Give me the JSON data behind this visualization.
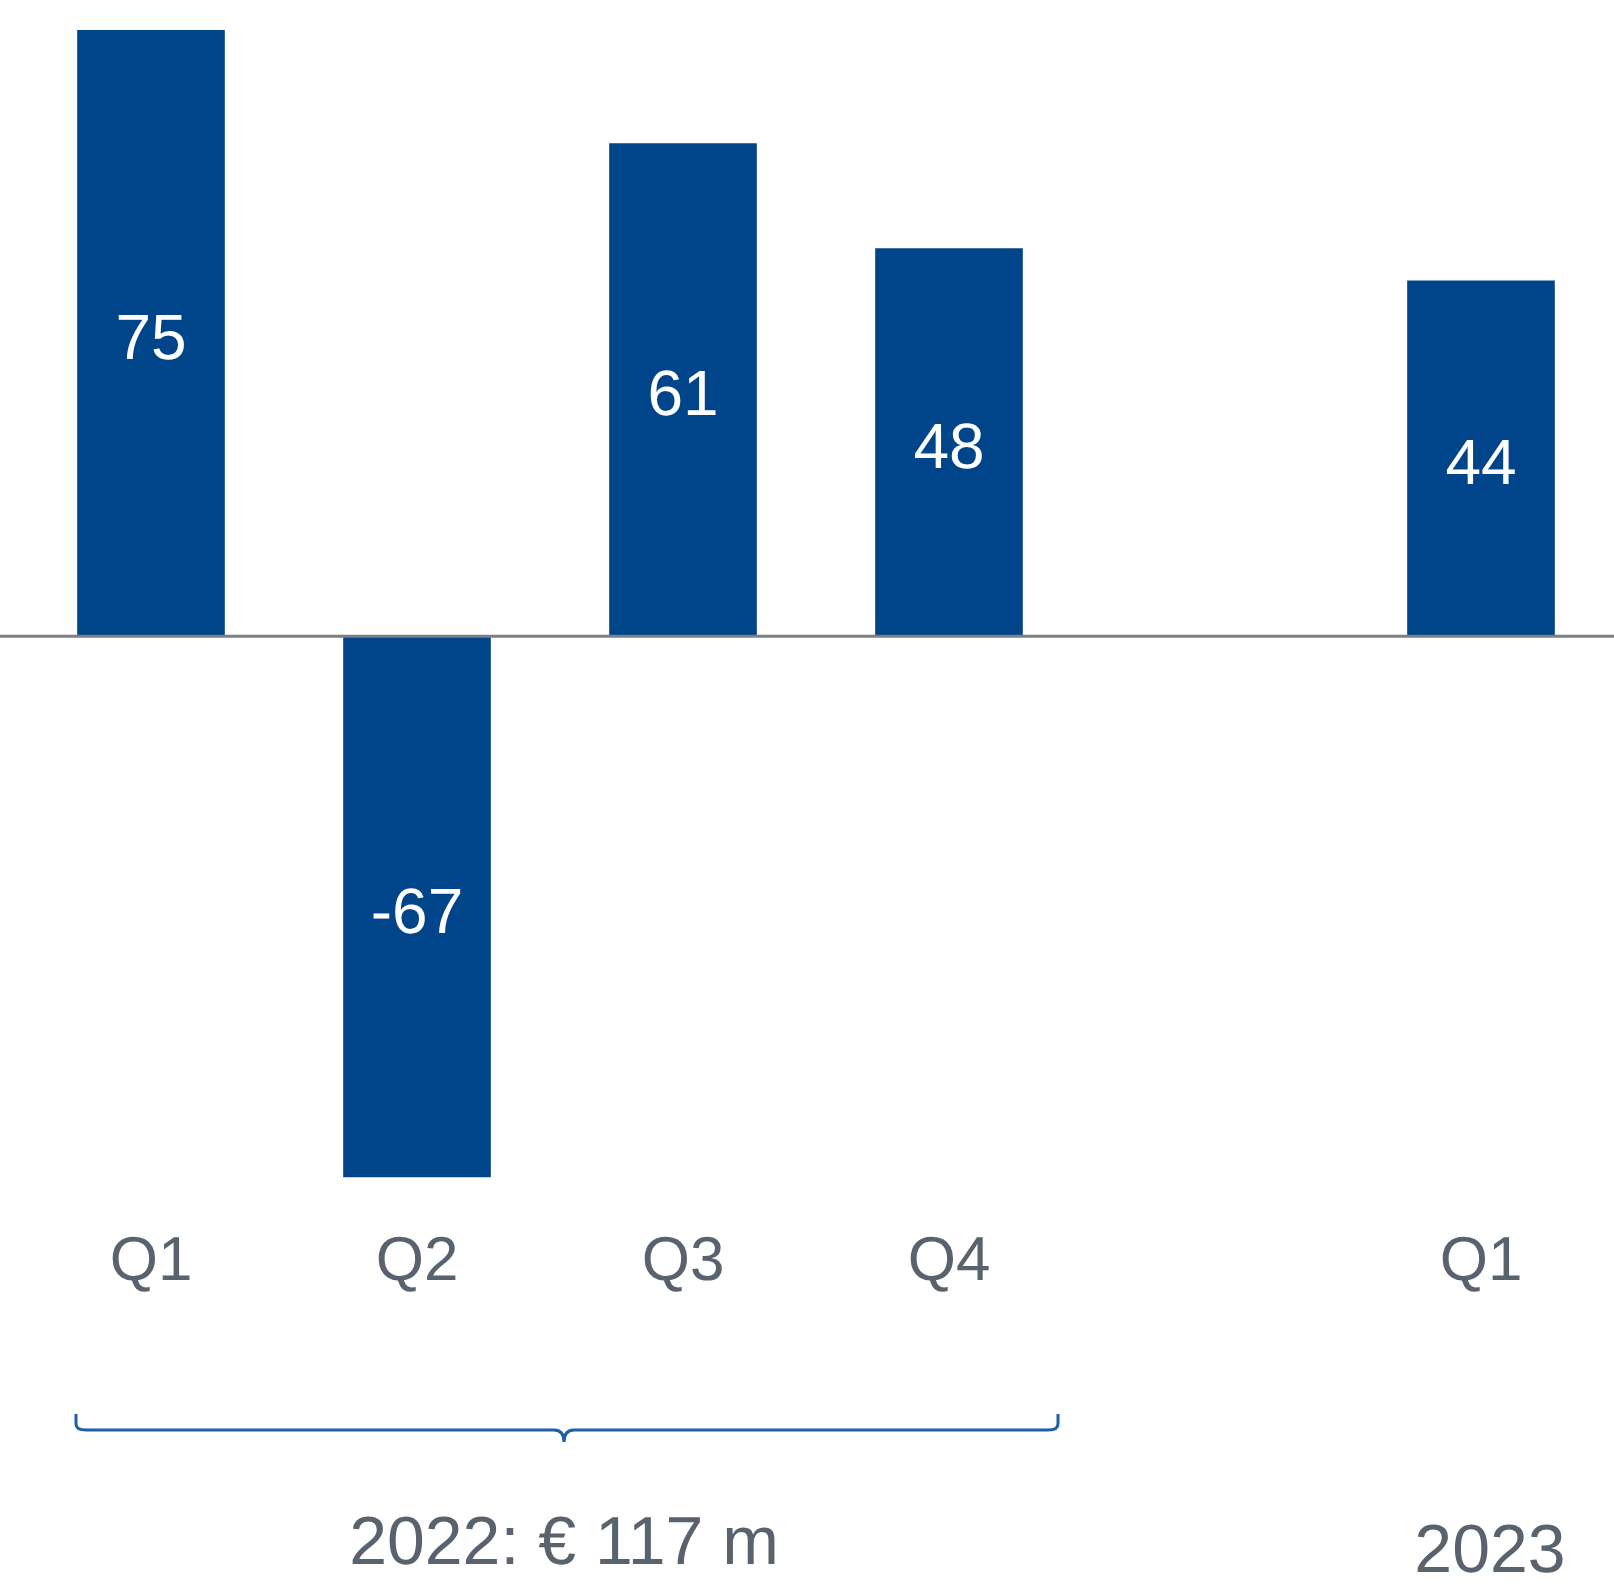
{
  "chart_data": {
    "type": "bar",
    "categories": [
      "Q1",
      "Q2",
      "Q3",
      "Q4",
      null,
      "Q1"
    ],
    "values": [
      75,
      -67,
      61,
      48,
      null,
      44
    ],
    "color": "#00448a",
    "ylim": [
      -67,
      75
    ],
    "data_labels": true,
    "legend": false,
    "grid": false,
    "tick_labels": "x",
    "annotations": [
      "2022: € 117 m",
      "2023"
    ]
  }
}
